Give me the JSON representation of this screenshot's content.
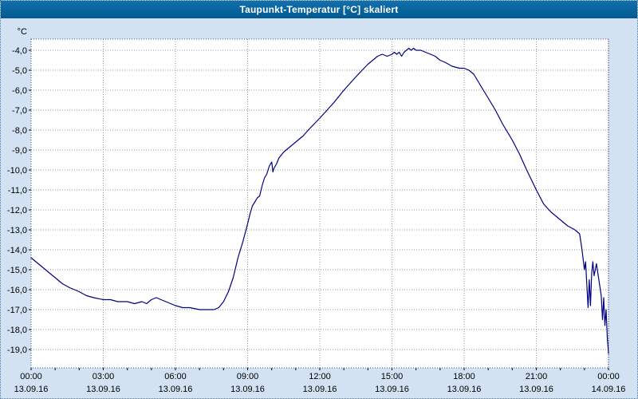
{
  "title_bar": {
    "title": "Taupunkt-Temperatur [°C] skaliert"
  },
  "chart_data": {
    "type": "line",
    "title": "Taupunkt-Temperatur [°C] skaliert",
    "ylabel": "°C",
    "xlabel": "",
    "grid": true,
    "legend": "none",
    "line_color": "#000080",
    "grid_color": "#9a9a9a",
    "plot_bg": "#ffffff",
    "border_color": "#33508c",
    "axis_range": {
      "xmin": 0,
      "xmax": 24,
      "ymin": -19.92,
      "ymax": -3.44
    },
    "y_ticks": [
      {
        "v": -4,
        "label": "-4,0"
      },
      {
        "v": -5,
        "label": "-5,0"
      },
      {
        "v": -6,
        "label": "-6,0"
      },
      {
        "v": -7,
        "label": "-7,0"
      },
      {
        "v": -8,
        "label": "-8,0"
      },
      {
        "v": -9,
        "label": "-9,0"
      },
      {
        "v": -10,
        "label": "-10,0"
      },
      {
        "v": -11,
        "label": "-11,0"
      },
      {
        "v": -12,
        "label": "-12,0"
      },
      {
        "v": -13,
        "label": "-13,0"
      },
      {
        "v": -14,
        "label": "-14,0"
      },
      {
        "v": -15,
        "label": "-15,0"
      },
      {
        "v": -16,
        "label": "-16,0"
      },
      {
        "v": -17,
        "label": "-17,0"
      },
      {
        "v": -18,
        "label": "-18,0"
      },
      {
        "v": -19,
        "label": "-19,0"
      }
    ],
    "x_ticks": [
      {
        "h": 0,
        "time": "00:00",
        "date": "13.09.16"
      },
      {
        "h": 3,
        "time": "03:00",
        "date": "13.09.16"
      },
      {
        "h": 6,
        "time": "06:00",
        "date": "13.09.16"
      },
      {
        "h": 9,
        "time": "09:00",
        "date": "13.09.16"
      },
      {
        "h": 12,
        "time": "12:00",
        "date": "13.09.16"
      },
      {
        "h": 15,
        "time": "15:00",
        "date": "13.09.16"
      },
      {
        "h": 18,
        "time": "18:00",
        "date": "13.09.16"
      },
      {
        "h": 21,
        "time": "21:00",
        "date": "13.09.16"
      },
      {
        "h": 24,
        "time": "00:00",
        "date": "14.09.16"
      }
    ],
    "series": [
      {
        "name": "Taupunkt-Temperatur",
        "points": [
          [
            0.0,
            -14.4
          ],
          [
            0.2,
            -14.6
          ],
          [
            0.5,
            -14.9
          ],
          [
            0.8,
            -15.2
          ],
          [
            1.0,
            -15.4
          ],
          [
            1.3,
            -15.7
          ],
          [
            1.6,
            -15.9
          ],
          [
            2.0,
            -16.1
          ],
          [
            2.3,
            -16.3
          ],
          [
            2.6,
            -16.4
          ],
          [
            3.0,
            -16.5
          ],
          [
            3.3,
            -16.5
          ],
          [
            3.6,
            -16.6
          ],
          [
            4.0,
            -16.6
          ],
          [
            4.3,
            -16.7
          ],
          [
            4.6,
            -16.6
          ],
          [
            4.8,
            -16.7
          ],
          [
            5.0,
            -16.5
          ],
          [
            5.2,
            -16.4
          ],
          [
            5.4,
            -16.5
          ],
          [
            5.6,
            -16.6
          ],
          [
            5.8,
            -16.7
          ],
          [
            6.0,
            -16.8
          ],
          [
            6.3,
            -16.9
          ],
          [
            6.6,
            -16.9
          ],
          [
            7.0,
            -17.0
          ],
          [
            7.3,
            -17.0
          ],
          [
            7.6,
            -17.0
          ],
          [
            7.8,
            -16.9
          ],
          [
            8.0,
            -16.6
          ],
          [
            8.2,
            -16.1
          ],
          [
            8.4,
            -15.4
          ],
          [
            8.5,
            -14.9
          ],
          [
            8.6,
            -14.4
          ],
          [
            8.8,
            -13.6
          ],
          [
            9.0,
            -12.7
          ],
          [
            9.1,
            -12.2
          ],
          [
            9.2,
            -11.8
          ],
          [
            9.3,
            -11.6
          ],
          [
            9.4,
            -11.4
          ],
          [
            9.5,
            -11.3
          ],
          [
            9.6,
            -10.8
          ],
          [
            9.7,
            -10.4
          ],
          [
            9.8,
            -10.2
          ],
          [
            9.9,
            -9.8
          ],
          [
            10.0,
            -9.6
          ],
          [
            10.05,
            -10.1
          ],
          [
            10.1,
            -9.9
          ],
          [
            10.2,
            -9.7
          ],
          [
            10.3,
            -9.4
          ],
          [
            10.5,
            -9.1
          ],
          [
            10.7,
            -8.9
          ],
          [
            11.0,
            -8.6
          ],
          [
            11.3,
            -8.3
          ],
          [
            11.6,
            -7.9
          ],
          [
            12.0,
            -7.4
          ],
          [
            12.3,
            -7.0
          ],
          [
            12.6,
            -6.6
          ],
          [
            13.0,
            -6.0
          ],
          [
            13.3,
            -5.6
          ],
          [
            13.6,
            -5.2
          ],
          [
            14.0,
            -4.7
          ],
          [
            14.2,
            -4.5
          ],
          [
            14.4,
            -4.3
          ],
          [
            14.6,
            -4.2
          ],
          [
            14.8,
            -4.3
          ],
          [
            15.0,
            -4.2
          ],
          [
            15.1,
            -4.1
          ],
          [
            15.2,
            -4.2
          ],
          [
            15.3,
            -4.1
          ],
          [
            15.4,
            -4.3
          ],
          [
            15.5,
            -4.1
          ],
          [
            15.6,
            -4.0
          ],
          [
            15.7,
            -3.9
          ],
          [
            15.8,
            -4.0
          ],
          [
            15.9,
            -3.9
          ],
          [
            16.0,
            -4.0
          ],
          [
            16.2,
            -4.0
          ],
          [
            16.4,
            -4.1
          ],
          [
            16.6,
            -4.2
          ],
          [
            16.8,
            -4.3
          ],
          [
            17.0,
            -4.5
          ],
          [
            17.2,
            -4.6
          ],
          [
            17.5,
            -4.8
          ],
          [
            17.8,
            -4.9
          ],
          [
            18.0,
            -4.9
          ],
          [
            18.2,
            -5.0
          ],
          [
            18.4,
            -5.2
          ],
          [
            18.6,
            -5.6
          ],
          [
            18.8,
            -6.0
          ],
          [
            19.0,
            -6.4
          ],
          [
            19.3,
            -7.0
          ],
          [
            19.6,
            -7.7
          ],
          [
            20.0,
            -8.5
          ],
          [
            20.3,
            -9.2
          ],
          [
            20.6,
            -10.0
          ],
          [
            21.0,
            -11.0
          ],
          [
            21.3,
            -11.7
          ],
          [
            21.6,
            -12.1
          ],
          [
            22.0,
            -12.5
          ],
          [
            22.3,
            -12.8
          ],
          [
            22.6,
            -13.0
          ],
          [
            22.8,
            -13.2
          ],
          [
            22.9,
            -14.0
          ],
          [
            23.0,
            -15.0
          ],
          [
            23.05,
            -14.6
          ],
          [
            23.1,
            -15.8
          ],
          [
            23.15,
            -16.9
          ],
          [
            23.2,
            -15.5
          ],
          [
            23.25,
            -16.8
          ],
          [
            23.3,
            -15.2
          ],
          [
            23.35,
            -14.6
          ],
          [
            23.4,
            -15.3
          ],
          [
            23.5,
            -14.7
          ],
          [
            23.6,
            -15.5
          ],
          [
            23.7,
            -16.3
          ],
          [
            23.75,
            -17.5
          ],
          [
            23.8,
            -16.4
          ],
          [
            23.85,
            -17.8
          ],
          [
            23.9,
            -17.0
          ],
          [
            23.95,
            -18.4
          ],
          [
            24.0,
            -19.2
          ]
        ]
      }
    ]
  }
}
